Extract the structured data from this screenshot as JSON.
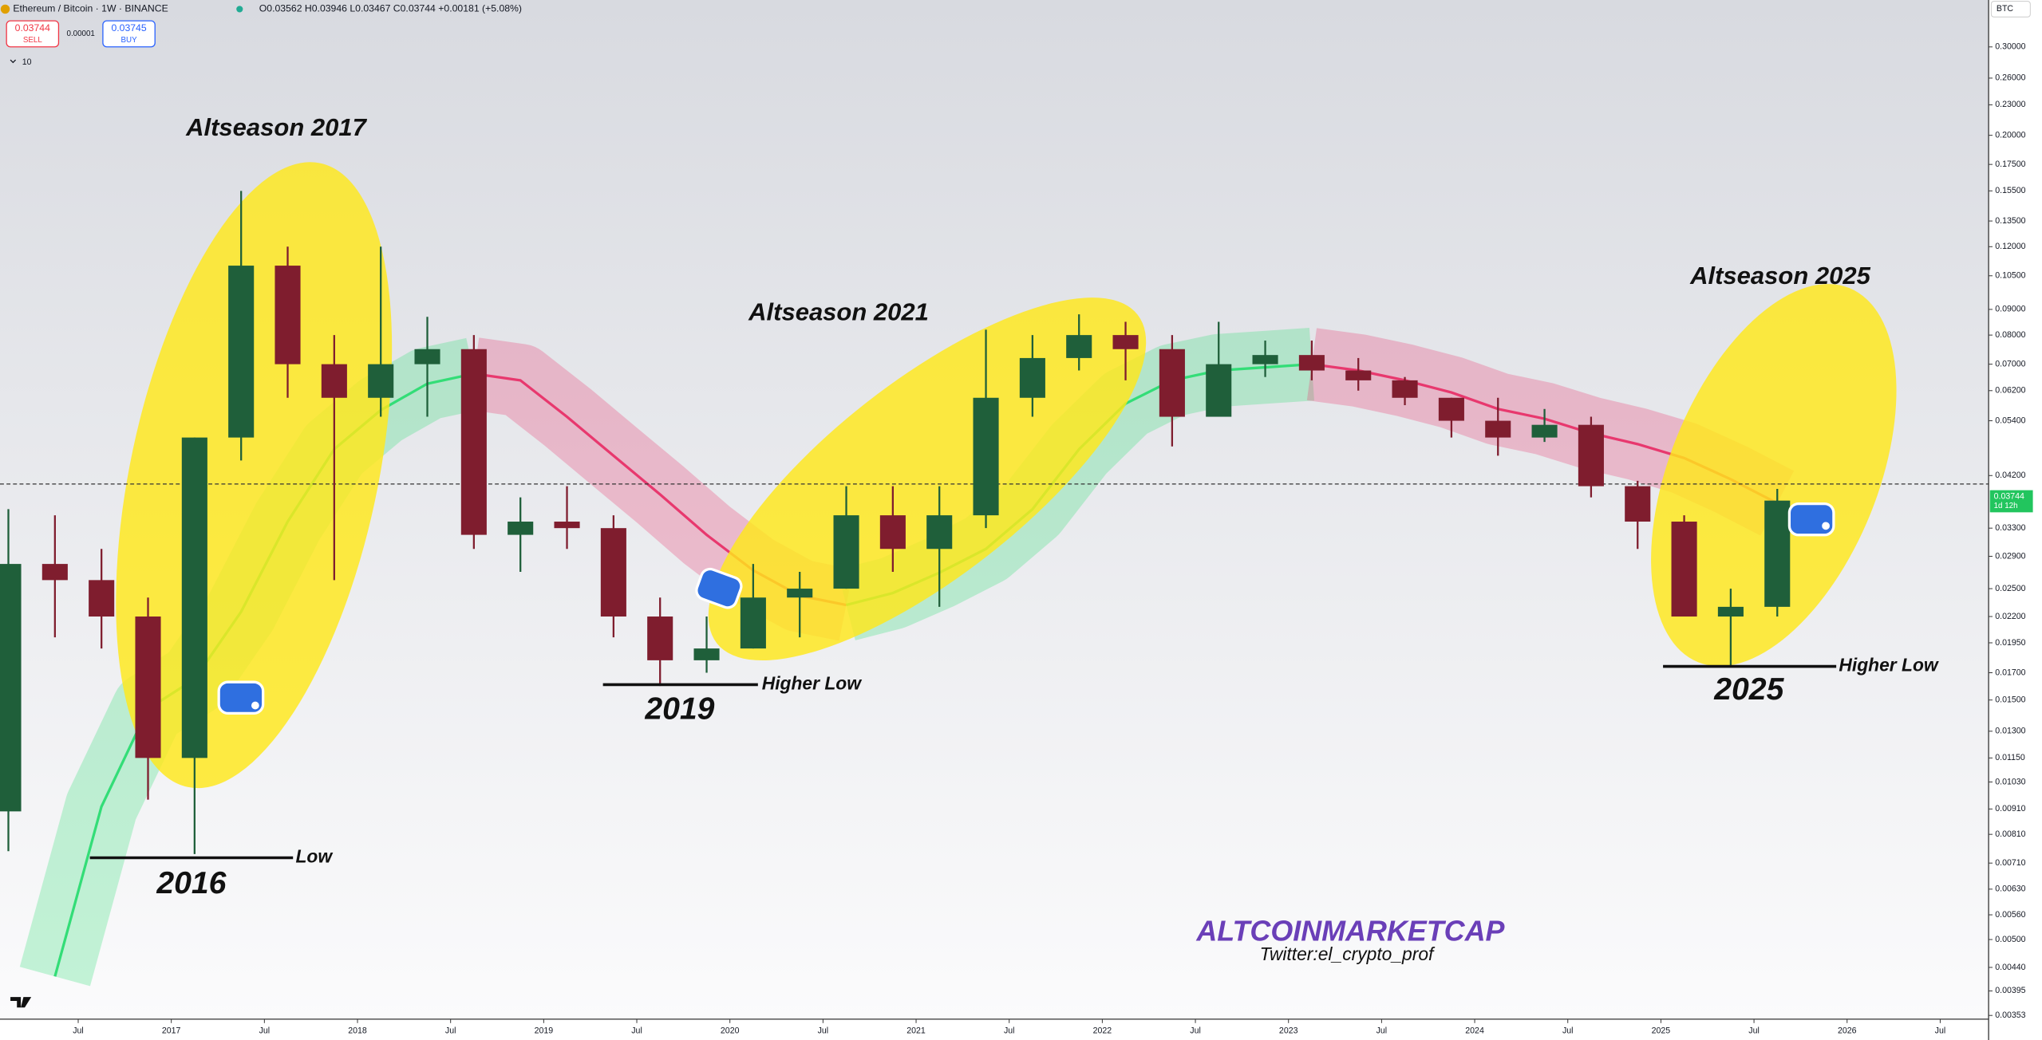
{
  "chart_data": {
    "type": "candlestick",
    "title": "Ethereum / Bitcoin · 1W · BINANCE",
    "ohlc_legend": "O0.03562 H0.03946 L0.03467 C0.03744 +0.00181 (+5.08%)",
    "sell_price": "0.03744",
    "sell_label": "SELL",
    "spread": "0.00001",
    "buy_price": "0.03745",
    "buy_label": "BUY",
    "indicator_count": "10",
    "currency": "BTC",
    "countdown": "1d 12h",
    "log_scale": true,
    "grid": false,
    "up_color": "#1f5f3a",
    "down_color": "#7f1d2e",
    "ma_up_color": "#33dd77",
    "ma_down_color": "#e8386e",
    "x": [
      2016.125,
      2016.375,
      2016.625,
      2016.875,
      2017.125,
      2017.375,
      2017.625,
      2017.875,
      2018.125,
      2018.375,
      2018.625,
      2018.875,
      2019.125,
      2019.375,
      2019.625,
      2019.875,
      2020.125,
      2020.375,
      2020.625,
      2020.875,
      2021.125,
      2021.375,
      2021.625,
      2021.875,
      2022.125,
      2022.375,
      2022.625,
      2022.875,
      2023.125,
      2023.375,
      2023.625,
      2023.875,
      2024.125,
      2024.375,
      2024.625,
      2024.875,
      2025.125,
      2025.375,
      2025.625
    ],
    "open": [
      0.009,
      0.028,
      0.026,
      0.022,
      0.0115,
      0.05,
      0.11,
      0.07,
      0.06,
      0.07,
      0.075,
      0.032,
      0.034,
      0.033,
      0.022,
      0.018,
      0.019,
      0.024,
      0.025,
      0.035,
      0.03,
      0.035,
      0.06,
      0.072,
      0.08,
      0.075,
      0.055,
      0.07,
      0.073,
      0.068,
      0.065,
      0.06,
      0.054,
      0.05,
      0.053,
      0.04,
      0.034,
      0.022,
      0.023
    ],
    "high": [
      0.036,
      0.035,
      0.03,
      0.024,
      0.05,
      0.155,
      0.12,
      0.08,
      0.12,
      0.087,
      0.08,
      0.038,
      0.04,
      0.035,
      0.024,
      0.022,
      0.028,
      0.027,
      0.04,
      0.04,
      0.04,
      0.082,
      0.08,
      0.088,
      0.085,
      0.08,
      0.085,
      0.078,
      0.078,
      0.072,
      0.066,
      0.06,
      0.06,
      0.057,
      0.055,
      0.041,
      0.035,
      0.025,
      0.0395
    ],
    "low": [
      0.0075,
      0.02,
      0.019,
      0.0095,
      0.0074,
      0.045,
      0.06,
      0.026,
      0.055,
      0.055,
      0.03,
      0.027,
      0.03,
      0.02,
      0.016,
      0.017,
      0.019,
      0.02,
      0.025,
      0.027,
      0.023,
      0.033,
      0.055,
      0.068,
      0.065,
      0.048,
      0.055,
      0.066,
      0.065,
      0.062,
      0.058,
      0.05,
      0.046,
      0.049,
      0.038,
      0.03,
      0.022,
      0.0175,
      0.022
    ],
    "close": [
      0.028,
      0.026,
      0.022,
      0.0115,
      0.05,
      0.11,
      0.07,
      0.06,
      0.07,
      0.075,
      0.032,
      0.034,
      0.033,
      0.022,
      0.018,
      0.019,
      0.024,
      0.025,
      0.035,
      0.03,
      0.035,
      0.06,
      0.072,
      0.08,
      0.075,
      0.055,
      0.07,
      0.073,
      0.068,
      0.065,
      0.06,
      0.054,
      0.05,
      0.053,
      0.04,
      0.034,
      0.022,
      0.023,
      0.03744
    ],
    "ma": [
      null,
      0.00422,
      0.0092,
      0.0144,
      0.0165,
      0.0225,
      0.034,
      0.0474,
      0.0567,
      0.064,
      0.067,
      0.065,
      0.055,
      0.046,
      0.0385,
      0.032,
      0.0272,
      0.0242,
      0.0232,
      0.0245,
      0.0269,
      0.03,
      0.036,
      0.0474,
      0.0584,
      0.065,
      0.068,
      0.069,
      0.07,
      0.068,
      0.065,
      0.0615,
      0.057,
      0.0545,
      0.051,
      0.0485,
      0.0455,
      0.0413,
      0.037
    ],
    "horizontal_line": 0.0404,
    "xlim": [
      2016.08,
      2026.76
    ],
    "xticks": [
      {
        "value": 2016.5,
        "label": "Jul"
      },
      2017,
      {
        "value": 2017.5,
        "label": "Jul"
      },
      2018,
      {
        "value": 2018.5,
        "label": "Jul"
      },
      2019,
      {
        "value": 2019.5,
        "label": "Jul"
      },
      2020,
      {
        "value": 2020.5,
        "label": "Jul"
      },
      2021,
      {
        "value": 2021.5,
        "label": "Jul"
      },
      2022,
      {
        "value": 2022.5,
        "label": "Jul"
      },
      2023,
      {
        "value": 2023.5,
        "label": "Jul"
      },
      2024,
      {
        "value": 2024.5,
        "label": "Jul"
      },
      2025,
      {
        "value": 2025.5,
        "label": "Jul"
      },
      2026,
      {
        "value": 2026.5,
        "label": "Jul"
      }
    ],
    "ylim": [
      0.00347,
      0.372
    ],
    "yticks": [
      {
        "value": 0.3,
        "label": "0.30000"
      },
      {
        "value": 0.26,
        "label": "0.26000"
      },
      {
        "value": 0.23,
        "label": "0.23000"
      },
      {
        "value": 0.2,
        "label": "0.20000"
      },
      {
        "value": 0.175,
        "label": "0.17500"
      },
      {
        "value": 0.155,
        "label": "0.15500"
      },
      {
        "value": 0.135,
        "label": "0.13500"
      },
      {
        "value": 0.12,
        "label": "0.12000"
      },
      {
        "value": 0.105,
        "label": "0.10500"
      },
      {
        "value": 0.09,
        "label": "0.09000"
      },
      {
        "value": 0.08,
        "label": "0.08000"
      },
      {
        "value": 0.07,
        "label": "0.07000"
      },
      {
        "value": 0.062,
        "label": "0.06200"
      },
      {
        "value": 0.054,
        "label": "0.05400"
      },
      {
        "value": 0.042,
        "label": "0.04200"
      },
      {
        "value": 0.033,
        "label": "0.03300"
      },
      {
        "value": 0.029,
        "label": "0.02900"
      },
      {
        "value": 0.025,
        "label": "0.02500"
      },
      {
        "value": 0.022,
        "label": "0.02200"
      },
      {
        "value": 0.0195,
        "label": "0.01950"
      },
      {
        "value": 0.017,
        "label": "0.01700"
      },
      {
        "value": 0.015,
        "label": "0.01500"
      },
      {
        "value": 0.013,
        "label": "0.01300"
      },
      {
        "value": 0.0115,
        "label": "0.01150"
      },
      {
        "value": 0.0103,
        "label": "0.01030"
      },
      {
        "value": 0.0091,
        "label": "0.00910"
      },
      {
        "value": 0.0081,
        "label": "0.00810"
      },
      {
        "value": 0.0071,
        "label": "0.00710"
      },
      {
        "value": 0.0063,
        "label": "0.00630"
      },
      {
        "value": 0.0056,
        "label": "0.00560"
      },
      {
        "value": 0.005,
        "label": "0.00500"
      },
      {
        "value": 0.0044,
        "label": "0.00440"
      },
      {
        "value": 0.00395,
        "label": "0.00395"
      },
      {
        "value": 0.00353,
        "label": "0.00353"
      }
    ],
    "annotations": [
      "Altseason 2017",
      "Altseason 2021",
      "Altseason 2025",
      "2016",
      "Low",
      "2019",
      "Higher Low",
      "2025",
      "Higher Low",
      "ALTCOINMARKETCAP",
      "Twitter:el_crypto_prof"
    ]
  }
}
